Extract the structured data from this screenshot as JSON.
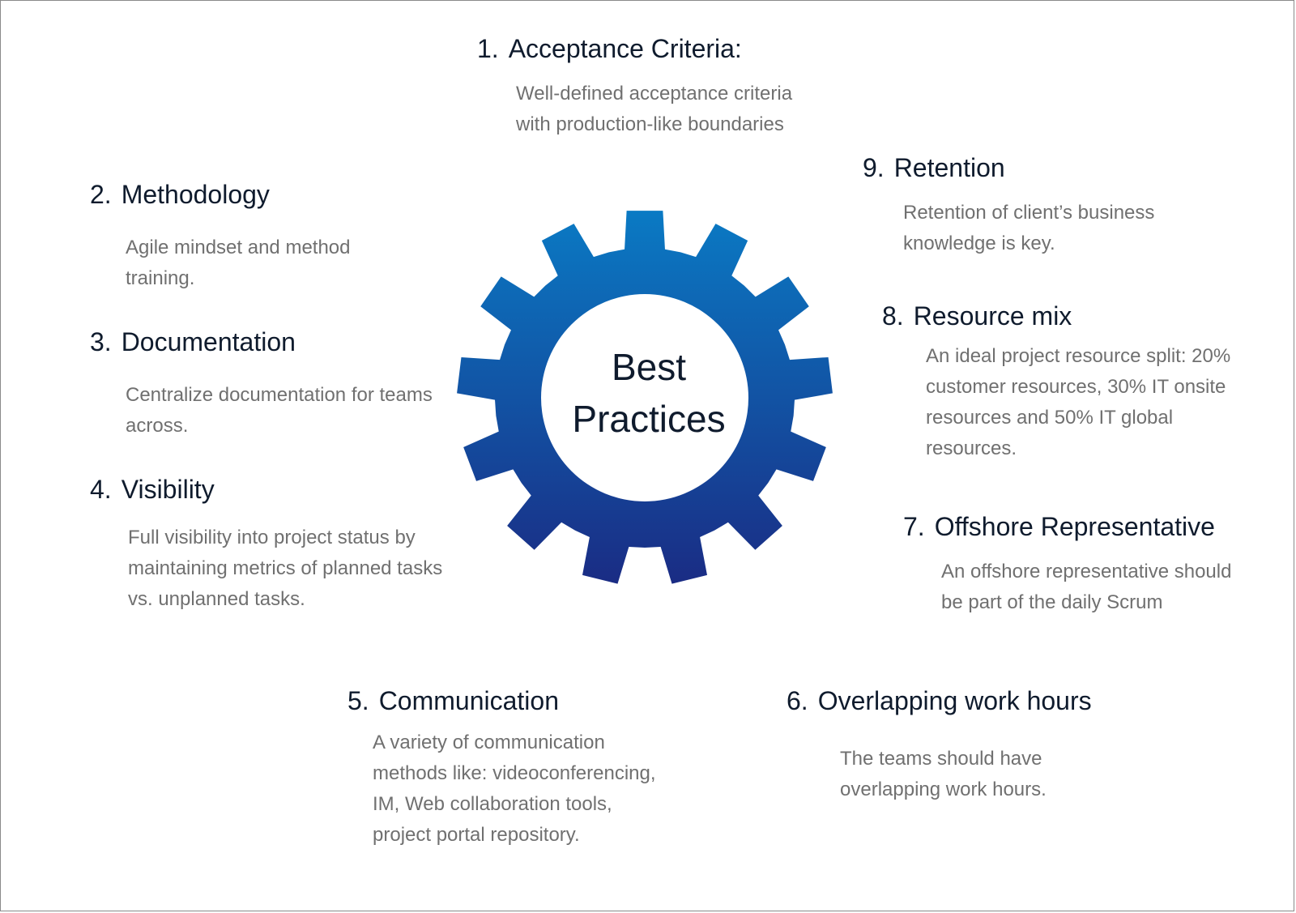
{
  "center": {
    "line1": "Best",
    "line2": "Practices"
  },
  "colors": {
    "gear_top": "#0a7ac4",
    "gear_bottom": "#1a2c84",
    "heading": "#0f1b2d",
    "text": "#707070"
  },
  "items": [
    {
      "num": "1.",
      "title": "Acceptance Criteria:",
      "text": "Well-defined acceptance criteria with production-like boundaries"
    },
    {
      "num": "2.",
      "title": "Methodology",
      "text": "Agile mindset and method training."
    },
    {
      "num": "3.",
      "title": "Documentation",
      "text": "Centralize documentation for teams across."
    },
    {
      "num": "4.",
      "title": "Visibility",
      "text": "Full visibility into project status by maintaining metrics of planned tasks vs. unplanned tasks."
    },
    {
      "num": "5.",
      "title": "Communication",
      "text": "A variety of communication methods like: videoconferencing, IM, Web collaboration tools, project portal repository."
    },
    {
      "num": "6.",
      "title": "Overlapping work hours",
      "text": "The teams should have overlapping work hours."
    },
    {
      "num": "7.",
      "title": "Offshore Representative",
      "text": "An offshore representative should be part of the daily Scrum"
    },
    {
      "num": "8.",
      "title": "Resource mix",
      "text": "An ideal project resource split: 20% customer resources, 30% IT onsite resources and 50% IT global resources."
    },
    {
      "num": "9.",
      "title": "Retention",
      "text": "Retention of client’s business knowledge is key."
    }
  ]
}
